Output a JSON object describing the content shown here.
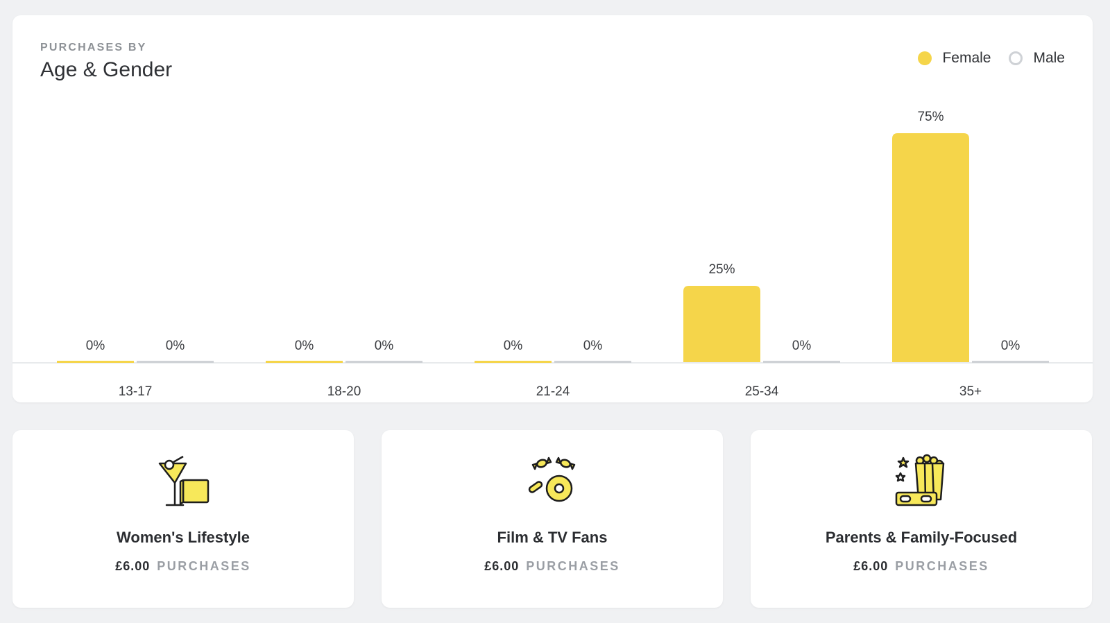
{
  "header": {
    "eyebrow": "PURCHASES BY",
    "title": "Age & Gender"
  },
  "legend": {
    "female": "Female",
    "male": "Male"
  },
  "colors": {
    "female": "#f5d54a",
    "male": "#cfd2d6"
  },
  "chart_data": {
    "type": "bar",
    "title": "Age & Gender",
    "categories": [
      "13-17",
      "18-20",
      "21-24",
      "25-34",
      "35+"
    ],
    "series": [
      {
        "name": "Female",
        "values": [
          0,
          0,
          0,
          25,
          75
        ],
        "labels": [
          "0%",
          "0%",
          "0%",
          "25%",
          "75%"
        ]
      },
      {
        "name": "Male",
        "values": [
          0,
          0,
          0,
          0,
          0
        ],
        "labels": [
          "0%",
          "0%",
          "0%",
          "0%",
          "0%"
        ]
      }
    ],
    "ylim": [
      0,
      75
    ],
    "grid": false,
    "legend": "top-right"
  },
  "segments": [
    {
      "name": "Women's Lifestyle",
      "value": "£6.00",
      "unit": "PURCHASES",
      "icon": "cocktail-shopping-icon"
    },
    {
      "name": "Film & TV Fans",
      "value": "£6.00",
      "unit": "PURCHASES",
      "icon": "candy-donut-icon"
    },
    {
      "name": "Parents & Family-Focused",
      "value": "£6.00",
      "unit": "PURCHASES",
      "icon": "popcorn-3d-glasses-icon"
    }
  ]
}
